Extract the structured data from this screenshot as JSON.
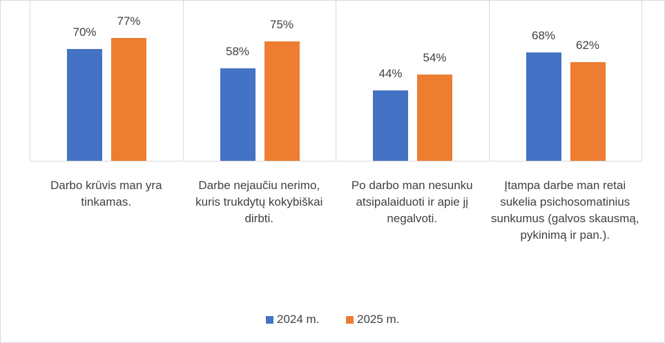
{
  "chart_data": {
    "type": "bar",
    "categories": [
      "Darbo krūvis man yra tinkamas.",
      "Darbe nejaučiu nerimo, kuris trukdytų kokybiškai dirbti.",
      "Po darbo man nesunku atsipalaiduoti ir apie jį negalvoti.",
      "Įtampa darbe man retai sukelia psichosomatinius sunkumus (galvos skausmą, pykinimą ir pan.)."
    ],
    "series": [
      {
        "name": "2024 m.",
        "color": "#4472c4",
        "values": [
          70,
          58,
          44,
          68
        ],
        "value_labels": [
          "70%",
          "58%",
          "44%",
          "68%"
        ]
      },
      {
        "name": "2025 m.",
        "color": "#ed7d31",
        "values": [
          77,
          75,
          54,
          62
        ],
        "value_labels": [
          "77%",
          "75%",
          "54%",
          "62%"
        ]
      }
    ],
    "legend": "bottom"
  }
}
